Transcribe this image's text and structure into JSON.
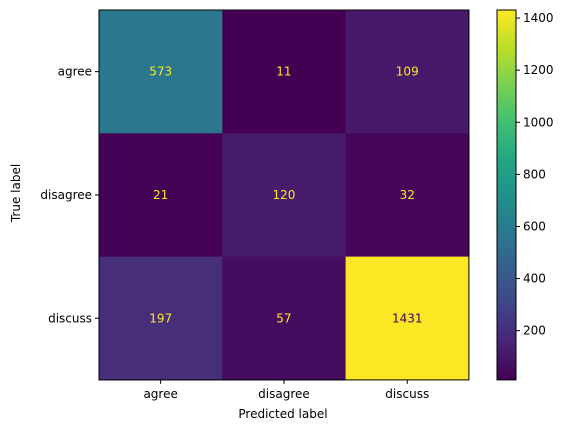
{
  "chart_data": {
    "type": "heatmap",
    "title": "",
    "xlabel": "Predicted label",
    "ylabel": "True label",
    "x_categories": [
      "agree",
      "disagree",
      "discuss"
    ],
    "y_categories": [
      "agree",
      "disagree",
      "discuss"
    ],
    "matrix": [
      [
        573,
        11,
        109
      ],
      [
        21,
        120,
        32
      ],
      [
        197,
        57,
        1431
      ]
    ],
    "colormap": "viridis",
    "color_range": [
      11,
      1431
    ],
    "colorbar_ticks": [
      200,
      400,
      600,
      800,
      1000,
      1200,
      1400
    ],
    "text_color_dark_cell": "#fde725",
    "text_color_light_cell": "#440154"
  }
}
